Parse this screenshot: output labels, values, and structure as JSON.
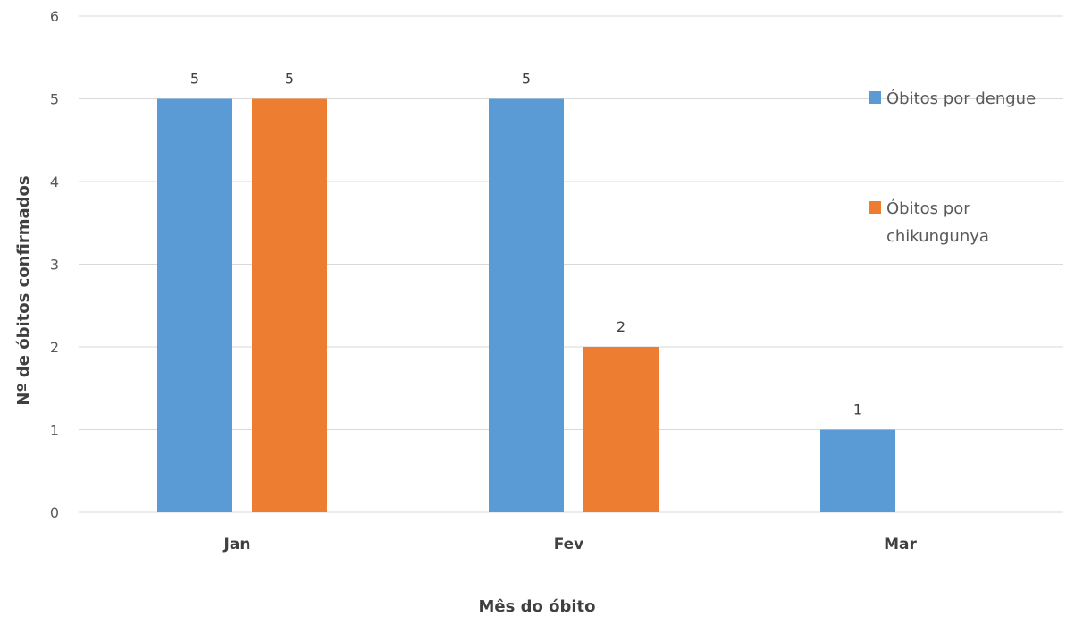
{
  "chart_data": {
    "type": "bar",
    "categories": [
      "Jan",
      "Fev",
      "Mar"
    ],
    "series": [
      {
        "name": "Óbitos por dengue",
        "values": [
          5,
          5,
          1
        ],
        "color": "#5b9bd5",
        "legend_lines": [
          "Óbitos por dengue"
        ]
      },
      {
        "name": "Óbitos por chikungunya",
        "values": [
          5,
          2,
          null
        ],
        "color": "#ed7d31",
        "legend_lines": [
          "Óbitos por",
          "chikungunya"
        ]
      }
    ],
    "xlabel": "Mês do óbito",
    "ylabel": "Nº de óbitos confirmados",
    "ylim": [
      0,
      6
    ],
    "yticks": [
      "0",
      "1",
      "2",
      "3",
      "4",
      "5",
      "6"
    ],
    "grid": true,
    "legend_position": "right",
    "data_labels": true
  }
}
